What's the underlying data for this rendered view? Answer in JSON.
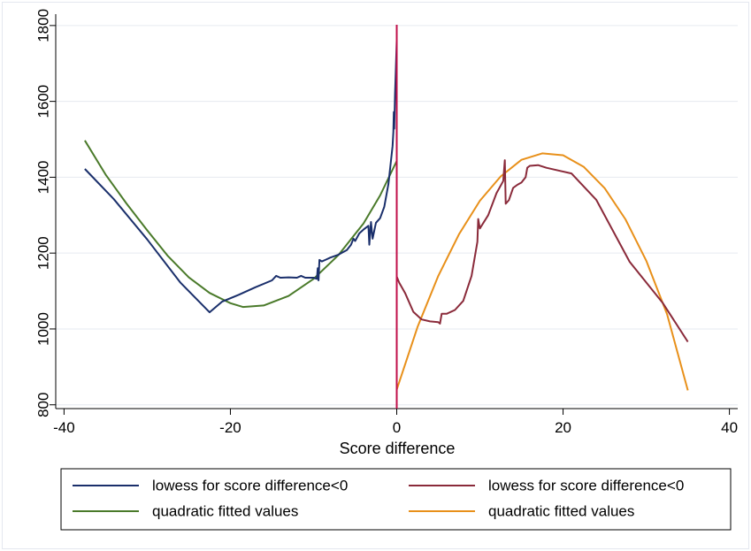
{
  "chart_data": {
    "type": "line",
    "title": "",
    "xlabel": "Score difference",
    "ylabel": "",
    "xlim": [
      -41,
      41
    ],
    "ylim": [
      790,
      1830
    ],
    "x_ticks": [
      -40,
      -20,
      0,
      20,
      40
    ],
    "y_ticks": [
      800,
      1000,
      1200,
      1400,
      1600,
      1800
    ],
    "grid": "horizontal",
    "cutoff_line": {
      "x": 0,
      "color": "#c0104a"
    },
    "legend_position": "bottom",
    "series": [
      {
        "name": "lowess for score difference<0",
        "color": "#1a2f6b",
        "points": [
          [
            -37.5,
            1422
          ],
          [
            -34,
            1342
          ],
          [
            -30,
            1236
          ],
          [
            -26,
            1122
          ],
          [
            -22.5,
            1044
          ],
          [
            -21,
            1072
          ],
          [
            -19,
            1090
          ],
          [
            -17,
            1110
          ],
          [
            -15,
            1128
          ],
          [
            -14.5,
            1140
          ],
          [
            -14,
            1135
          ],
          [
            -13,
            1136
          ],
          [
            -12,
            1135
          ],
          [
            -11.5,
            1140
          ],
          [
            -11,
            1135
          ],
          [
            -10,
            1135
          ],
          [
            -9.6,
            1132
          ],
          [
            -9.5,
            1160
          ],
          [
            -9.4,
            1128
          ],
          [
            -9.3,
            1182
          ],
          [
            -9,
            1178
          ],
          [
            -8.5,
            1183
          ],
          [
            -8,
            1188
          ],
          [
            -7,
            1196
          ],
          [
            -6,
            1208
          ],
          [
            -5.5,
            1222
          ],
          [
            -5.2,
            1238
          ],
          [
            -5,
            1232
          ],
          [
            -4.5,
            1252
          ],
          [
            -4,
            1262
          ],
          [
            -3.4,
            1272
          ],
          [
            -3.3,
            1222
          ],
          [
            -3.1,
            1282
          ],
          [
            -2.9,
            1238
          ],
          [
            -2.5,
            1280
          ],
          [
            -2,
            1292
          ],
          [
            -1.5,
            1322
          ],
          [
            -1,
            1382
          ],
          [
            -0.5,
            1482
          ],
          [
            -0.4,
            1520
          ],
          [
            -0.35,
            1572
          ],
          [
            -0.3,
            1528
          ],
          [
            -0.2,
            1620
          ],
          [
            -0.1,
            1692
          ],
          [
            0,
            1760
          ]
        ]
      },
      {
        "name": "quadratic fitted values",
        "color": "#4a7a2a",
        "points": [
          [
            -37.5,
            1497
          ],
          [
            -35,
            1407
          ],
          [
            -32.5,
            1331
          ],
          [
            -30,
            1260
          ],
          [
            -27.5,
            1192
          ],
          [
            -25,
            1136
          ],
          [
            -22.5,
            1095
          ],
          [
            -20,
            1068
          ],
          [
            -18.5,
            1058
          ],
          [
            -16,
            1062
          ],
          [
            -13,
            1087
          ],
          [
            -10,
            1132
          ],
          [
            -7,
            1195
          ],
          [
            -4,
            1278
          ],
          [
            -2,
            1352
          ],
          [
            0,
            1443
          ]
        ]
      },
      {
        "name": "lowess for score difference<0",
        "color": "#8a2a3a",
        "points": [
          [
            0,
            1138
          ],
          [
            0.3,
            1122
          ],
          [
            1,
            1095
          ],
          [
            2,
            1045
          ],
          [
            3,
            1025
          ],
          [
            4,
            1020
          ],
          [
            5,
            1018
          ],
          [
            5.2,
            1014
          ],
          [
            5.4,
            1040
          ],
          [
            6,
            1040
          ],
          [
            7,
            1050
          ],
          [
            8,
            1074
          ],
          [
            9,
            1140
          ],
          [
            9.7,
            1230
          ],
          [
            9.8,
            1290
          ],
          [
            10,
            1265
          ],
          [
            11,
            1300
          ],
          [
            12,
            1358
          ],
          [
            12.8,
            1390
          ],
          [
            13,
            1445
          ],
          [
            13.1,
            1330
          ],
          [
            13.5,
            1340
          ],
          [
            14,
            1372
          ],
          [
            14.5,
            1380
          ],
          [
            15,
            1386
          ],
          [
            15.5,
            1400
          ],
          [
            15.7,
            1425
          ],
          [
            16,
            1430
          ],
          [
            17,
            1432
          ],
          [
            18,
            1425
          ],
          [
            21,
            1410
          ],
          [
            24,
            1340
          ],
          [
            28,
            1177
          ],
          [
            32,
            1068
          ],
          [
            35,
            966
          ]
        ]
      },
      {
        "name": "quadratic fitted values",
        "color": "#e8901a",
        "points": [
          [
            0,
            840
          ],
          [
            2.5,
            1005
          ],
          [
            5,
            1140
          ],
          [
            7.5,
            1250
          ],
          [
            10,
            1338
          ],
          [
            12.5,
            1402
          ],
          [
            15,
            1446
          ],
          [
            17.5,
            1463
          ],
          [
            20,
            1458
          ],
          [
            22.5,
            1427
          ],
          [
            25,
            1371
          ],
          [
            27.5,
            1289
          ],
          [
            30,
            1180
          ],
          [
            32.5,
            1039
          ],
          [
            35,
            838
          ]
        ]
      }
    ]
  }
}
